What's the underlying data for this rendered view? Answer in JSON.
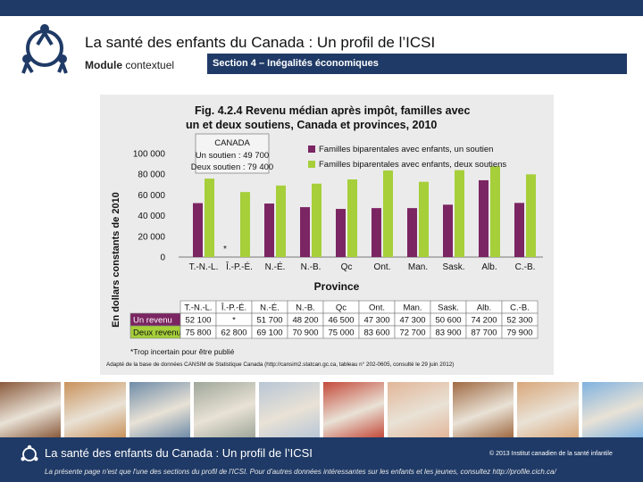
{
  "header": {
    "title": "La santé des enfants du Canada : Un profil de l’ICSI",
    "module_label_bold": "Module",
    "module_label_rest": " contextuel",
    "section": "Section 4 – Inégalités économiques"
  },
  "figure": {
    "title_line1": "Fig. 4.2.4  Revenu médian après impôt, familles avec",
    "title_line2": "un et deux soutiens, Canada et provinces, 2010",
    "canada_box": {
      "title": "CANADA",
      "line1": "Un soutien : 49 700",
      "line2": "Deux soutien : 79 400"
    },
    "legend": [
      "Familles biparentales avec enfants, un soutien",
      "Familles biparentales avec enfants, deux soutiens"
    ],
    "table": {
      "row_labels": [
        "Un revenu",
        "Deux revenus"
      ],
      "row1": [
        "52 100",
        "*",
        "51 700",
        "48 200",
        "46 500",
        "47 300",
        "47 300",
        "50 600",
        "74 200",
        "52 300"
      ],
      "row2": [
        "75 800",
        "62 800",
        "69 100",
        "70 900",
        "75 000",
        "83 600",
        "72 700",
        "83 900",
        "87 700",
        "79 900"
      ]
    },
    "footnote": "*Trop incertain pour être publié",
    "source": "Adapté de la base de données CANSIM de Statistique Canada (http://cansim2.statcan.gc.ca, tableau n° 202-0605, consulté le 29 juin 2012)",
    "star_marker": "*"
  },
  "chart_data": {
    "type": "bar",
    "title": "Revenu médian après impôt, familles avec un et deux soutiens, Canada et provinces, 2010",
    "xlabel": "Province",
    "ylabel": "En dollars constants de 2010",
    "ylim": [
      0,
      100000
    ],
    "yticks": [
      "0",
      "20 000",
      "40 000",
      "60 000",
      "80 000",
      "100 000"
    ],
    "categories": [
      "T.-N.-L.",
      "Î.-P.-É.",
      "N.-É.",
      "N.-B.",
      "Qc",
      "Ont.",
      "Man.",
      "Sask.",
      "Alb.",
      "C.-B."
    ],
    "series": [
      {
        "name": "Familles biparentales avec enfants, un soutien",
        "color": "#7b2562",
        "values": [
          52100,
          null,
          51700,
          48200,
          46500,
          47300,
          47300,
          50600,
          74200,
          52300
        ]
      },
      {
        "name": "Familles biparentales avec enfants, deux soutiens",
        "color": "#a6cf3a",
        "values": [
          75800,
          62800,
          69100,
          70900,
          75000,
          83600,
          72700,
          83900,
          87700,
          79900
        ]
      }
    ],
    "legend_position": "top-right",
    "grid": false
  },
  "photos": [
    {
      "name": "photo-mother-child",
      "color": "#8a5a3c"
    },
    {
      "name": "photo-kids-smiling",
      "color": "#c9925c"
    },
    {
      "name": "photo-group-kids",
      "color": "#6f8ca8"
    },
    {
      "name": "photo-child-wheelchair",
      "color": "#9fa79a"
    },
    {
      "name": "photo-child-winter",
      "color": "#b8c6d6"
    },
    {
      "name": "photo-sports-team",
      "color": "#c44a3a"
    },
    {
      "name": "photo-pregnant-belly",
      "color": "#e2b699"
    },
    {
      "name": "photo-girl-portrait",
      "color": "#a06a42"
    },
    {
      "name": "photo-boy-toothbrush",
      "color": "#d9a77b"
    },
    {
      "name": "photo-kids-jumping",
      "color": "#7fb2e0"
    }
  ],
  "footer": {
    "title": "La santé des enfants du Canada : Un profil de l’ICSI",
    "copyright": "© 2013  Institut canadien de la santé infantile",
    "note": "La présente page n'est que l'une des sections du profil de l'ICSI. Pour d'autres données intéressantes sur les enfants et les jeunes, consultez http://profile.cich.ca/"
  },
  "colors": {
    "navy": "#1f3a66",
    "purple": "#7b2562",
    "green": "#a6cf3a"
  }
}
